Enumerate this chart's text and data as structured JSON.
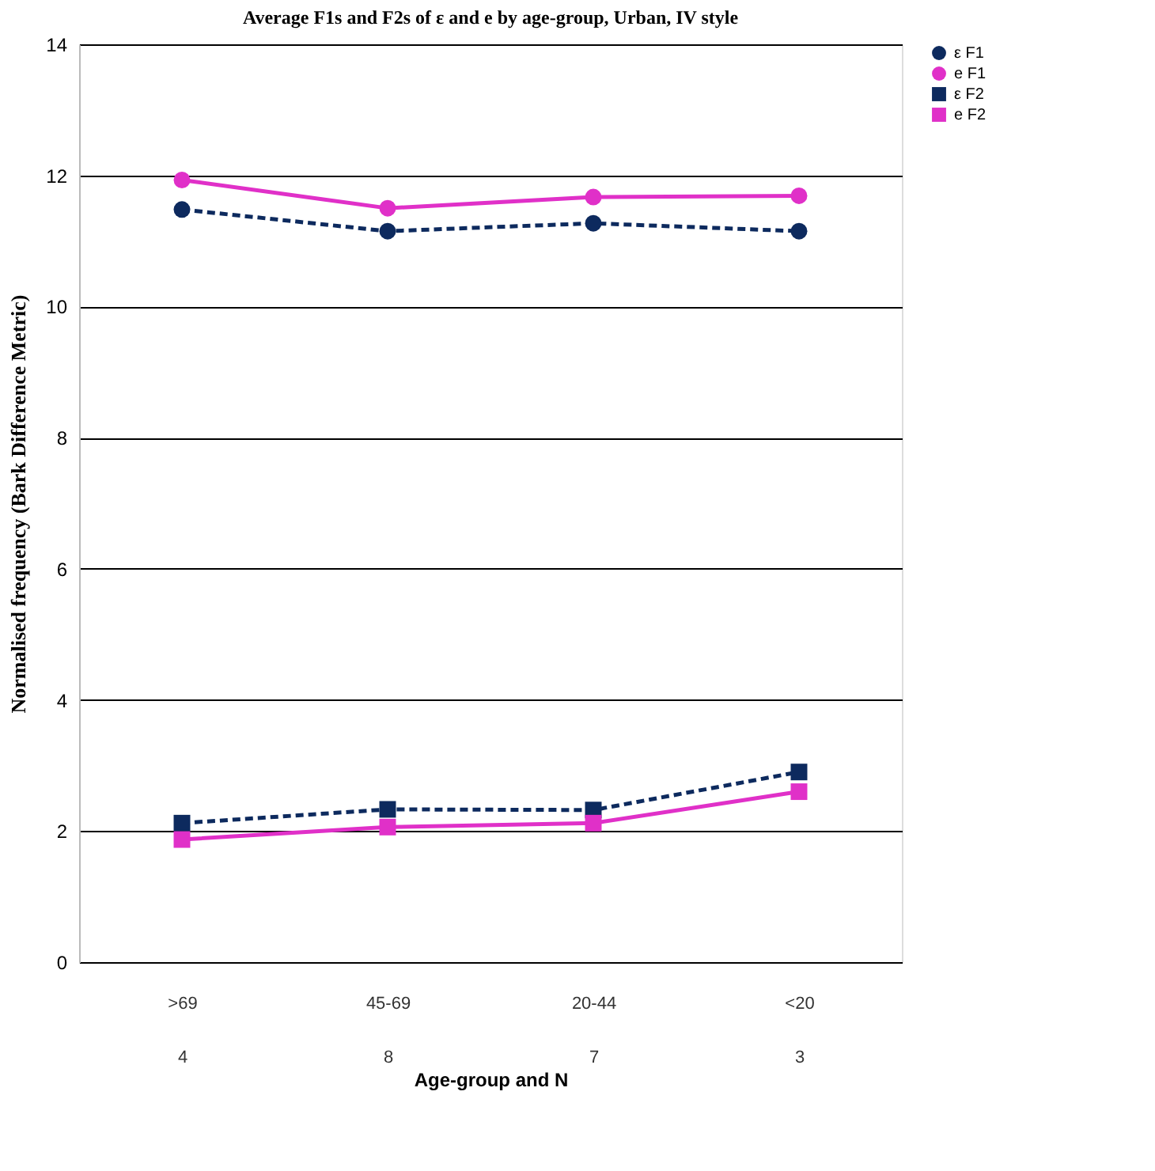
{
  "chart_data": {
    "type": "line",
    "title": "Average F1s and F2s of ε and e by age-group, Urban, IV style",
    "xlabel": "Age-group and N",
    "ylabel": "Normalised frequency (Bark Difference Metric)",
    "categories": [
      ">69\n4",
      "45-69\n8",
      "20-44\n7",
      "<20\n3"
    ],
    "series": [
      {
        "name": "ε F1",
        "color": "#0d2a5e",
        "marker": "circle",
        "line_style": "dashed",
        "values": [
          11.48,
          11.15,
          11.27,
          11.15
        ]
      },
      {
        "name": "e F1",
        "color": "#e030c8",
        "marker": "circle",
        "line_style": "solid",
        "values": [
          11.93,
          11.5,
          11.67,
          11.69
        ]
      },
      {
        "name": "ε F2",
        "color": "#0d2a5e",
        "marker": "square",
        "line_style": "dashed",
        "values": [
          2.12,
          2.33,
          2.32,
          2.9
        ]
      },
      {
        "name": "e F2",
        "color": "#e030c8",
        "marker": "square",
        "line_style": "solid",
        "values": [
          1.87,
          2.06,
          2.12,
          2.6
        ]
      }
    ],
    "ylim": [
      0,
      14
    ],
    "yticks": [
      0,
      2,
      4,
      6,
      8,
      10,
      12,
      14
    ],
    "grid": "y",
    "legend": "right"
  }
}
